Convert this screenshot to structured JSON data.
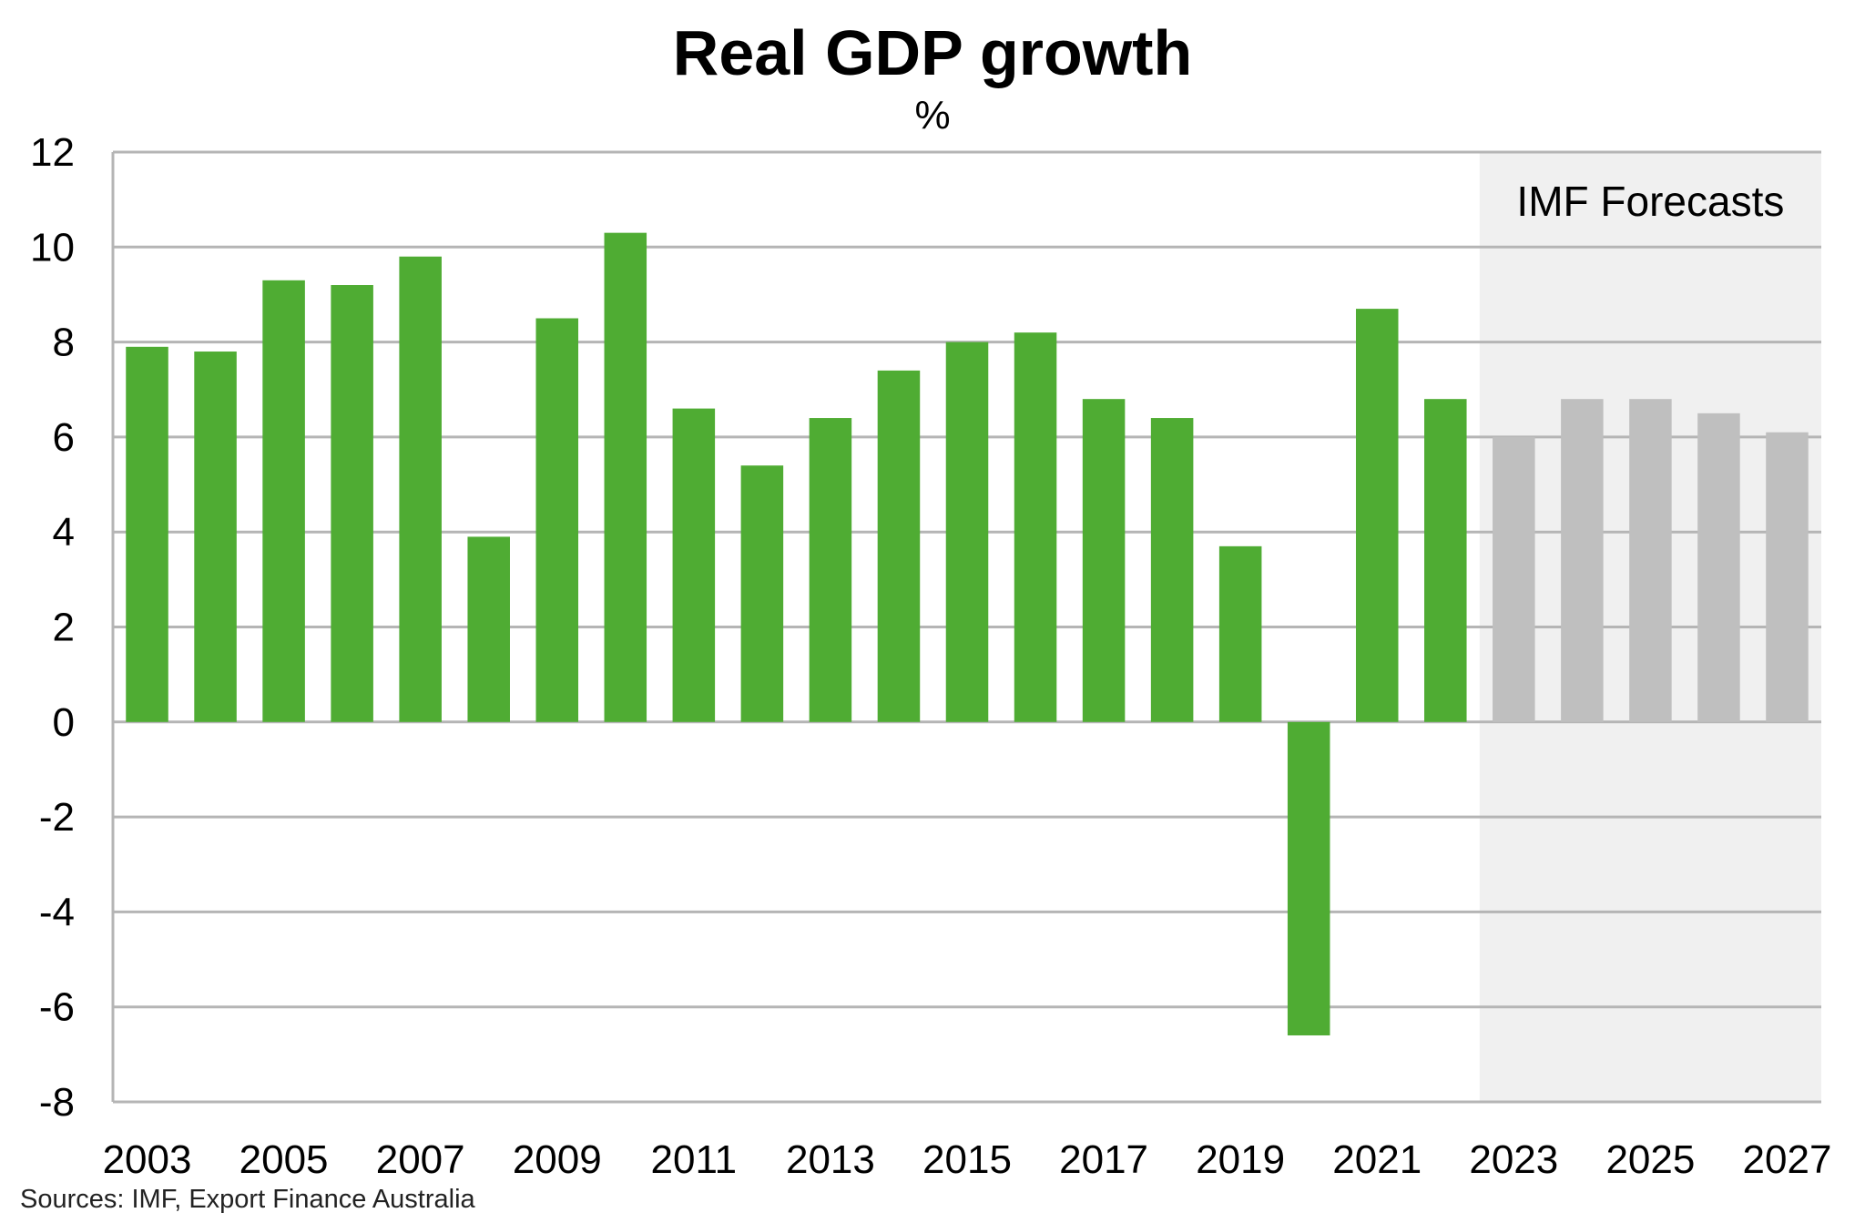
{
  "chart_data": {
    "type": "bar",
    "title": "Real GDP growth",
    "subtitle": "%",
    "categories": [
      "2003",
      "2004",
      "2005",
      "2006",
      "2007",
      "2008",
      "2009",
      "2010",
      "2011",
      "2012",
      "2013",
      "2014",
      "2015",
      "2016",
      "2017",
      "2018",
      "2019",
      "2020",
      "2021",
      "2022",
      "2023",
      "2024",
      "2025",
      "2026",
      "2027"
    ],
    "x_tick_labels": [
      "2003",
      "2005",
      "2007",
      "2009",
      "2011",
      "2013",
      "2015",
      "2017",
      "2019",
      "2021",
      "2023",
      "2025",
      "2027"
    ],
    "series": [
      {
        "values": [
          7.9,
          7.8,
          9.3,
          9.2,
          9.8,
          3.9,
          8.5,
          10.3,
          6.6,
          5.4,
          6.4,
          7.4,
          8.0,
          8.2,
          6.8,
          6.4,
          3.7,
          -6.6,
          8.7,
          6.8,
          null,
          null,
          null,
          null,
          null
        ],
        "color": "#4fac33"
      },
      {
        "values": [
          null,
          null,
          null,
          null,
          null,
          null,
          null,
          null,
          null,
          null,
          null,
          null,
          null,
          null,
          null,
          null,
          null,
          null,
          null,
          null,
          6.0,
          6.8,
          6.8,
          6.5,
          6.1
        ],
        "color": "#bfbfbf"
      }
    ],
    "forecast_region": {
      "start": "2023",
      "end": "2027",
      "label": "IMF Forecasts",
      "shade_color": "#f0f0f0"
    },
    "ylim": [
      -8,
      12
    ],
    "y_ticks": [
      12,
      10,
      8,
      6,
      4,
      2,
      0,
      -2,
      -4,
      -6,
      -8
    ],
    "xlabel": "",
    "ylabel": "",
    "grid": true,
    "gridline_color": "#b5b5b5",
    "source": "Sources: IMF, Export Finance Australia"
  }
}
